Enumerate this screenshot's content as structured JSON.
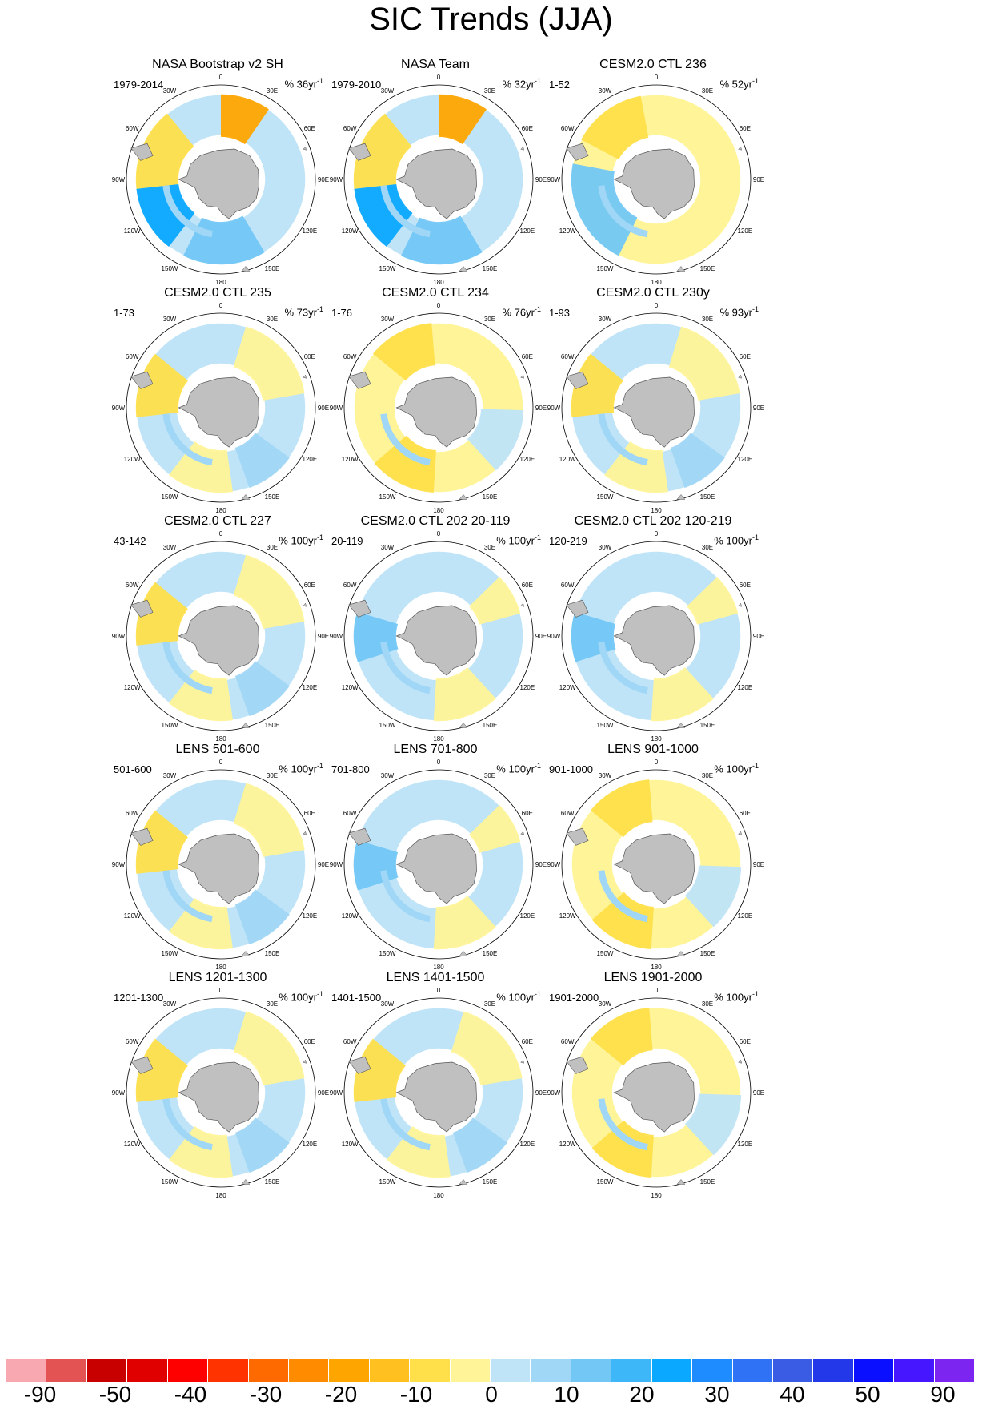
{
  "title": "SIC Trends (JJA)",
  "map_labels": {
    "lon_labels": [
      "0",
      "30E",
      "60E",
      "90E",
      "120E",
      "150E",
      "180",
      "150W",
      "120W",
      "90W",
      "60W",
      "30W"
    ]
  },
  "panels": [
    {
      "title": "NASA Bootstrap v2 SH",
      "period": "1979-2014",
      "unit": "% 36yr",
      "unit_sup": "-1",
      "pattern": "obs"
    },
    {
      "title": "NASA Team",
      "period": "1979-2010",
      "unit": "% 32yr",
      "unit_sup": "-1",
      "pattern": "obs"
    },
    {
      "title": "CESM2.0 CTL 236",
      "period": "1-52",
      "unit": "% 52yr",
      "unit_sup": "-1",
      "pattern": "ring-blue"
    },
    {
      "title": "CESM2.0 CTL 235",
      "period": "1-73",
      "unit": "% 73yr",
      "unit_sup": "-1",
      "pattern": "mixed"
    },
    {
      "title": "CESM2.0 CTL 234",
      "period": "1-76",
      "unit": "% 76yr",
      "unit_sup": "-1",
      "pattern": "yellow"
    },
    {
      "title": "CESM2.0 CTL 230y",
      "period": "1-93",
      "unit": "% 93yr",
      "unit_sup": "-1",
      "pattern": "mixed"
    },
    {
      "title": "CESM2.0 CTL 227",
      "period": "43-142",
      "unit": "% 100yr",
      "unit_sup": "-1",
      "pattern": "mixed"
    },
    {
      "title": "CESM2.0 CTL 202 20-119",
      "period": "20-119",
      "unit": "% 100yr",
      "unit_sup": "-1",
      "pattern": "blue"
    },
    {
      "title": "CESM2.0 CTL 202 120-219",
      "period": "120-219",
      "unit": "% 100yr",
      "unit_sup": "-1",
      "pattern": "blue"
    },
    {
      "title": "LENS 501-600",
      "period": "501-600",
      "unit": "% 100yr",
      "unit_sup": "-1",
      "pattern": "mixed"
    },
    {
      "title": "LENS 701-800",
      "period": "701-800",
      "unit": "% 100yr",
      "unit_sup": "-1",
      "pattern": "blue"
    },
    {
      "title": "LENS 901-1000",
      "period": "901-1000",
      "unit": "% 100yr",
      "unit_sup": "-1",
      "pattern": "yellow"
    },
    {
      "title": "LENS 1201-1300",
      "period": "1201-1300",
      "unit": "% 100yr",
      "unit_sup": "-1",
      "pattern": "mixed"
    },
    {
      "title": "LENS 1401-1500",
      "period": "1401-1500",
      "unit": "% 100yr",
      "unit_sup": "-1",
      "pattern": "mixed"
    },
    {
      "title": "LENS 1901-2000",
      "period": "1901-2000",
      "unit": "% 100yr",
      "unit_sup": "-1",
      "pattern": "yellow"
    }
  ],
  "colorbar": {
    "colors": [
      "#f8a8b0",
      "#e35353",
      "#c90000",
      "#e10000",
      "#ff0000",
      "#ff3300",
      "#ff6a00",
      "#ff8c00",
      "#ffa500",
      "#ffc020",
      "#ffdf4a",
      "#fff498",
      "#bfe4f8",
      "#a0d6f6",
      "#72c7f5",
      "#3db7f8",
      "#0aa8ff",
      "#1e8cff",
      "#2f72f5",
      "#3a5ce4",
      "#2338e8",
      "#0a10ff",
      "#4516ff",
      "#7c25f0"
    ],
    "labels": [
      "-90",
      "-50",
      "-40",
      "-30",
      "-20",
      "-10",
      "0",
      "10",
      "20",
      "30",
      "40",
      "50",
      "90"
    ]
  }
}
